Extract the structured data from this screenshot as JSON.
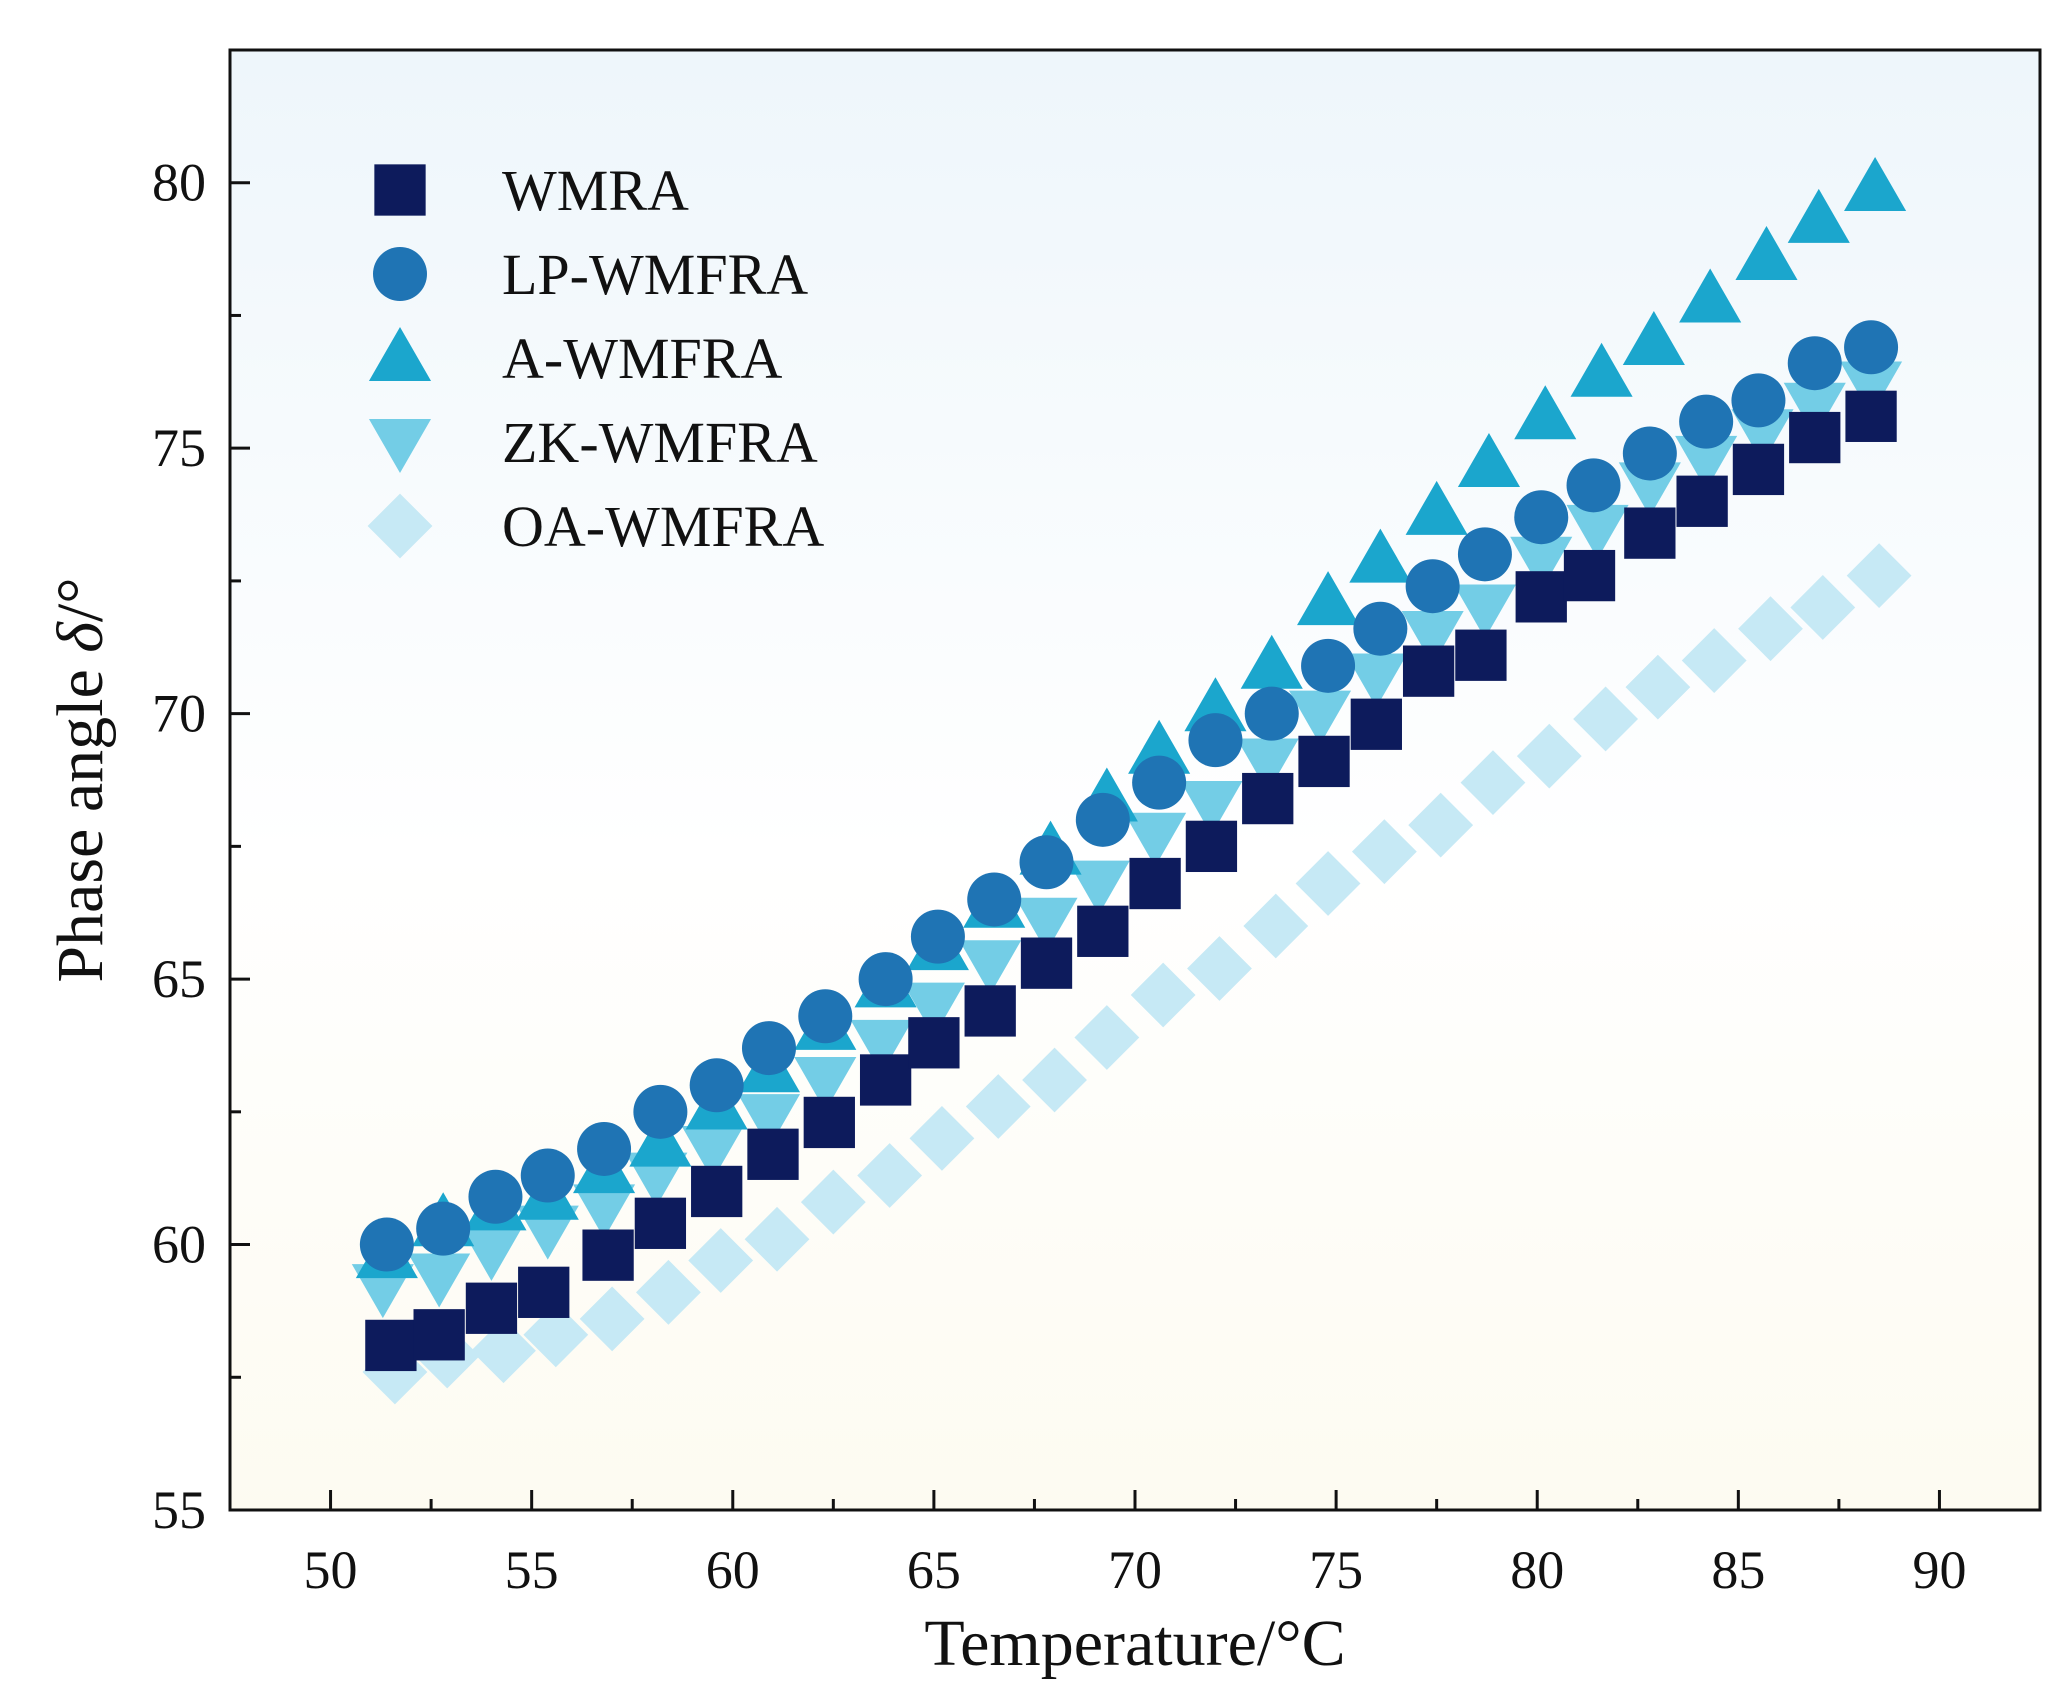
{
  "chart_data": {
    "type": "scatter",
    "title": "",
    "xlabel": "Temperature/°C",
    "ylabel_prefix": "Phase angle ",
    "ylabel_symbol": "δ",
    "ylabel_suffix": "/°",
    "xlim": [
      47.5,
      92.5
    ],
    "ylim": [
      55,
      82.5
    ],
    "x_ticks": [
      50,
      55,
      60,
      65,
      70,
      75,
      80,
      85,
      90
    ],
    "y_ticks": [
      55,
      60,
      65,
      70,
      75,
      80
    ],
    "legend_position": "top-left",
    "background_gradient": [
      "#eef6fb",
      "#ffffff",
      "#fdfbf1"
    ],
    "series": [
      {
        "name": "WMRA",
        "marker": "square",
        "color": "#0d1b5c",
        "x": [
          51.5,
          52.7,
          54.0,
          55.3,
          56.9,
          58.2,
          59.6,
          61.0,
          62.4,
          63.8,
          65.0,
          66.4,
          67.8,
          69.2,
          70.5,
          71.9,
          73.3,
          74.7,
          76.0,
          77.3,
          78.6,
          80.1,
          81.3,
          82.8,
          84.1,
          85.5,
          86.9,
          88.3
        ],
        "y": [
          58.1,
          58.3,
          58.8,
          59.1,
          59.8,
          60.4,
          61.0,
          61.7,
          62.3,
          63.1,
          63.8,
          64.4,
          65.3,
          65.9,
          66.8,
          67.5,
          68.4,
          69.1,
          69.8,
          70.8,
          71.1,
          72.2,
          72.6,
          73.4,
          74.0,
          74.6,
          75.2,
          75.6
        ]
      },
      {
        "name": "LP-WMFRA",
        "marker": "circle",
        "color": "#1f74b4",
        "x": [
          51.4,
          52.8,
          54.1,
          55.4,
          56.8,
          58.2,
          59.6,
          60.9,
          62.3,
          63.8,
          65.1,
          66.5,
          67.8,
          69.2,
          70.6,
          72.0,
          73.4,
          74.8,
          76.1,
          77.4,
          78.7,
          80.1,
          81.4,
          82.8,
          84.2,
          85.5,
          86.9,
          88.3
        ],
        "y": [
          60.0,
          60.3,
          60.9,
          61.3,
          61.8,
          62.5,
          63.0,
          63.7,
          64.3,
          65.0,
          65.8,
          66.5,
          67.2,
          68.0,
          68.7,
          69.5,
          70.0,
          70.9,
          71.6,
          72.4,
          73.0,
          73.7,
          74.3,
          74.9,
          75.5,
          75.9,
          76.6,
          76.9
        ]
      },
      {
        "name": "A-WMFRA",
        "marker": "triangle-up",
        "color": "#1ba6cd",
        "x": [
          51.4,
          52.8,
          54.1,
          55.4,
          56.8,
          58.2,
          59.6,
          60.9,
          62.3,
          63.8,
          65.1,
          66.5,
          67.9,
          69.3,
          70.6,
          72.0,
          73.4,
          74.8,
          76.1,
          77.5,
          78.8,
          80.2,
          81.6,
          82.9,
          84.3,
          85.7,
          87.0,
          88.4
        ],
        "y": [
          59.8,
          60.4,
          60.7,
          60.9,
          61.4,
          61.9,
          62.6,
          63.3,
          64.1,
          64.9,
          65.6,
          66.4,
          67.4,
          68.4,
          69.3,
          70.1,
          70.9,
          72.1,
          72.9,
          73.8,
          74.7,
          75.6,
          76.4,
          77.0,
          77.8,
          78.6,
          79.3,
          79.9
        ]
      },
      {
        "name": "ZK-WMFRA",
        "marker": "triangle-down",
        "color": "#73cde6",
        "x": [
          51.3,
          52.7,
          54.0,
          55.4,
          56.8,
          58.1,
          59.5,
          60.9,
          62.3,
          63.7,
          65.0,
          66.4,
          67.8,
          69.1,
          70.5,
          71.9,
          73.3,
          74.6,
          76.0,
          77.4,
          78.7,
          80.1,
          81.5,
          82.8,
          84.2,
          85.6,
          86.9,
          88.3
        ],
        "y": [
          59.2,
          59.4,
          59.9,
          60.3,
          60.7,
          61.3,
          61.8,
          62.4,
          63.1,
          63.8,
          64.5,
          65.3,
          66.1,
          66.8,
          67.7,
          68.3,
          69.1,
          70.0,
          70.7,
          71.5,
          72.0,
          72.9,
          73.5,
          74.3,
          74.8,
          75.3,
          75.8,
          76.2
        ]
      },
      {
        "name": "OA-WMFRA",
        "marker": "diamond",
        "color": "#c6e9f5",
        "x": [
          51.6,
          52.9,
          54.3,
          55.6,
          57.0,
          58.4,
          59.7,
          61.1,
          62.5,
          63.9,
          65.2,
          66.6,
          68.0,
          69.3,
          70.7,
          72.1,
          73.5,
          74.8,
          76.2,
          77.6,
          78.9,
          80.3,
          81.7,
          83.0,
          84.4,
          85.8,
          87.1,
          88.5
        ],
        "y": [
          57.6,
          57.9,
          58.0,
          58.3,
          58.6,
          59.1,
          59.7,
          60.1,
          60.8,
          61.3,
          62.0,
          62.6,
          63.1,
          63.9,
          64.7,
          65.2,
          66.0,
          66.8,
          67.4,
          67.9,
          68.7,
          69.2,
          69.9,
          70.5,
          71.0,
          71.6,
          72.0,
          72.6
        ]
      }
    ]
  }
}
